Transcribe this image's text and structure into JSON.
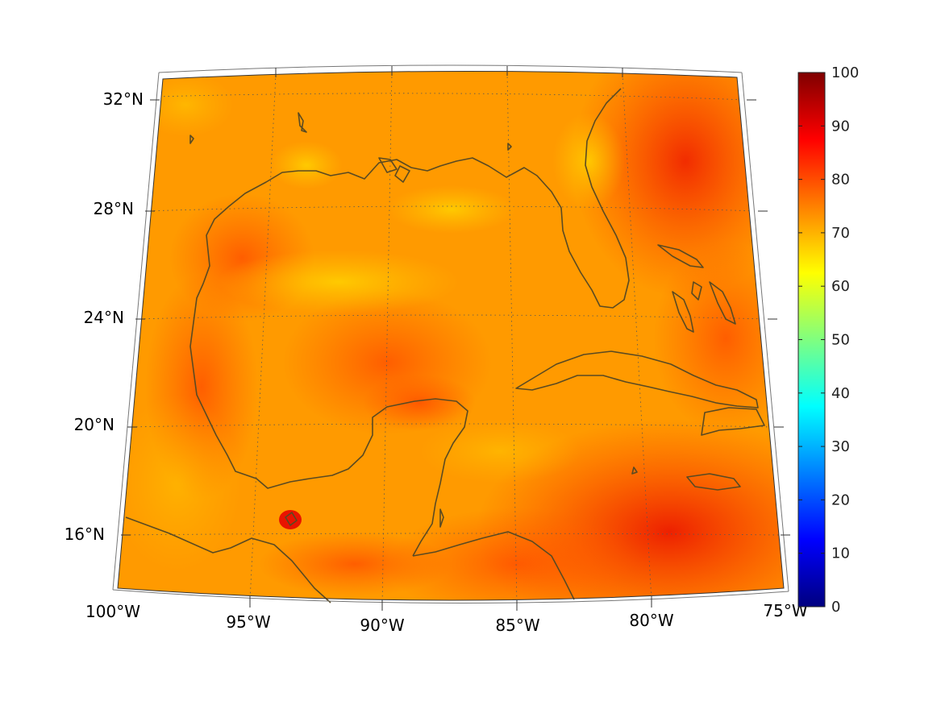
{
  "map": {
    "latitude_labels": [
      "32°N",
      "28°N",
      "24°N",
      "20°N",
      "16°N"
    ],
    "longitude_labels": [
      "100°W",
      "95°W",
      "90°W",
      "85°W",
      "80°W",
      "75°W"
    ],
    "extent": {
      "lon_min": -100,
      "lon_max": -75,
      "lat_min": 14,
      "lat_max": 33
    },
    "field_colors": {
      "base": "#ff9f00",
      "warm": "#ff4800",
      "hot": "#ee1a00",
      "cool": "#ffc800",
      "coast": "#5a4a22"
    }
  },
  "colorbar": {
    "ticks": [
      "0",
      "10",
      "20",
      "30",
      "40",
      "50",
      "60",
      "70",
      "80",
      "90",
      "100"
    ],
    "range": [
      0,
      100
    ],
    "colormap": "jet"
  }
}
